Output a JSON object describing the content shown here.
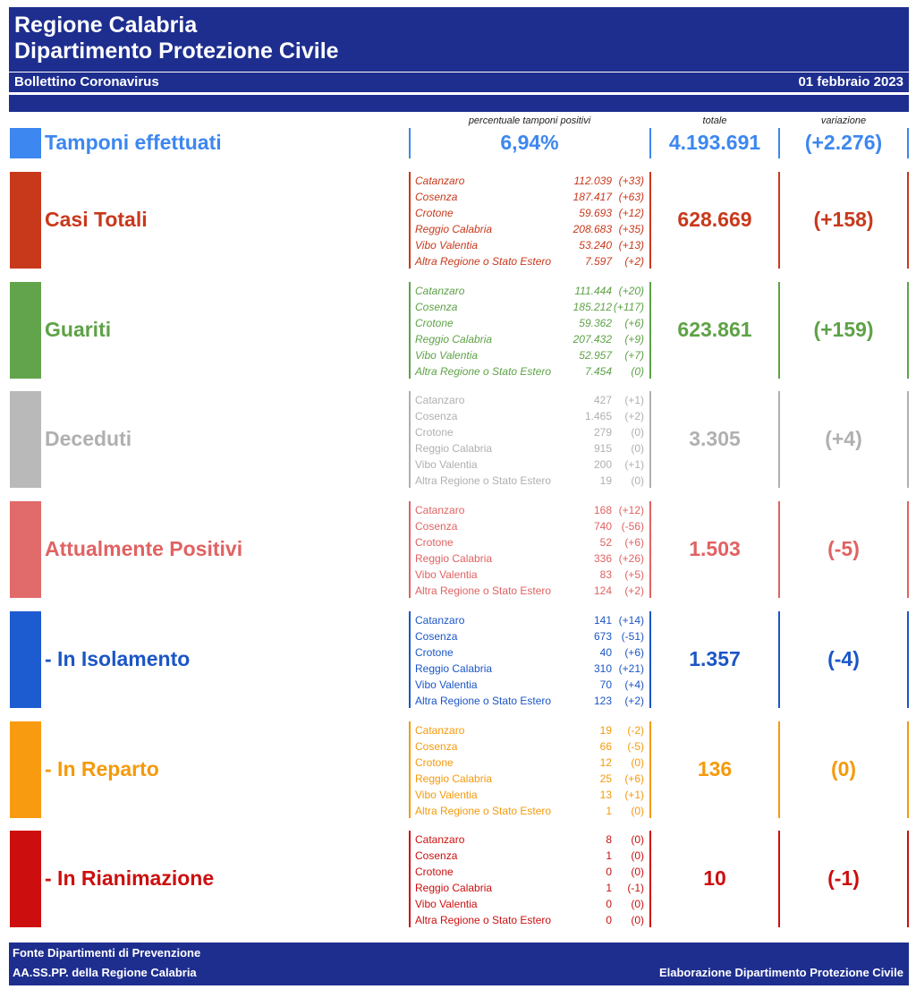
{
  "header": {
    "region": "Regione Calabria",
    "department": "Dipartimento Protezione Civile",
    "bulletin": "Bollettino Coronavirus",
    "date": "01 febbraio 2023"
  },
  "columns": {
    "percent": "percentuale tamponi positivi",
    "total": "totale",
    "change": "variazione"
  },
  "tamponi": {
    "label": "Tamponi effettuati",
    "percent": "6,94%",
    "total": "4.193.691",
    "change": "(+2.276)",
    "color": "#3c87f0"
  },
  "sections": [
    {
      "key": "casi-totali",
      "label": "Casi Totali",
      "color": "#c8391c",
      "swatch": "#c8391c",
      "italic": true,
      "total": "628.669",
      "change": "(+158)",
      "rows": [
        {
          "name": "Catanzaro",
          "value": "112.039",
          "delta": "(+33)"
        },
        {
          "name": "Cosenza",
          "value": "187.417",
          "delta": "(+63)"
        },
        {
          "name": "Crotone",
          "value": "59.693",
          "delta": "(+12)"
        },
        {
          "name": "Reggio Calabria",
          "value": "208.683",
          "delta": "(+35)"
        },
        {
          "name": "Vibo Valentia",
          "value": "53.240",
          "delta": "(+13)"
        },
        {
          "name": "Altra Regione o Stato Estero",
          "value": "7.597",
          "delta": "(+2)"
        }
      ]
    },
    {
      "key": "guariti",
      "label": "Guariti",
      "color": "#5ea247",
      "swatch": "#62a44b",
      "italic": true,
      "total": "623.861",
      "change": "(+159)",
      "rows": [
        {
          "name": "Catanzaro",
          "value": "111.444",
          "delta": "(+20)"
        },
        {
          "name": "Cosenza",
          "value": "185.212",
          "delta": "(+117)"
        },
        {
          "name": "Crotone",
          "value": "59.362",
          "delta": "(+6)"
        },
        {
          "name": "Reggio Calabria",
          "value": "207.432",
          "delta": "(+9)"
        },
        {
          "name": "Vibo Valentia",
          "value": "52.957",
          "delta": "(+7)"
        },
        {
          "name": "Altra Regione o Stato Estero",
          "value": "7.454",
          "delta": "(0)"
        }
      ]
    },
    {
      "key": "deceduti",
      "label": "Deceduti",
      "color": "#b0b0b0",
      "swatch": "#b9b9b9",
      "italic": false,
      "total": "3.305",
      "change": "(+4)",
      "rows": [
        {
          "name": "Catanzaro",
          "value": "427",
          "delta": "(+1)"
        },
        {
          "name": "Cosenza",
          "value": "1.465",
          "delta": "(+2)"
        },
        {
          "name": "Crotone",
          "value": "279",
          "delta": "(0)"
        },
        {
          "name": "Reggio Calabria",
          "value": "915",
          "delta": "(0)"
        },
        {
          "name": "Vibo Valentia",
          "value": "200",
          "delta": "(+1)"
        },
        {
          "name": "Altra Regione o Stato Estero",
          "value": "19",
          "delta": "(0)"
        }
      ]
    },
    {
      "key": "attualmente-positivi",
      "label": "Attualmente Positivi",
      "color": "#e06262",
      "swatch": "#e16a6a",
      "italic": false,
      "total": "1.503",
      "change": "(-5)",
      "rows": [
        {
          "name": "Catanzaro",
          "value": "168",
          "delta": "(+12)"
        },
        {
          "name": "Cosenza",
          "value": "740",
          "delta": "(-56)"
        },
        {
          "name": "Crotone",
          "value": "52",
          "delta": "(+6)"
        },
        {
          "name": "Reggio Calabria",
          "value": "336",
          "delta": "(+26)"
        },
        {
          "name": "Vibo Valentia",
          "value": "83",
          "delta": "(+5)"
        },
        {
          "name": "Altra Regione o Stato Estero",
          "value": "124",
          "delta": "(+2)"
        }
      ]
    },
    {
      "key": "in-isolamento",
      "label": "- In Isolamento",
      "color": "#1b56c6",
      "swatch": "#1d5bd0",
      "italic": false,
      "total": "1.357",
      "change": "(-4)",
      "rows": [
        {
          "name": "Catanzaro",
          "value": "141",
          "delta": "(+14)"
        },
        {
          "name": "Cosenza",
          "value": "673",
          "delta": "(-51)"
        },
        {
          "name": "Crotone",
          "value": "40",
          "delta": "(+6)"
        },
        {
          "name": "Reggio Calabria",
          "value": "310",
          "delta": "(+21)"
        },
        {
          "name": "Vibo Valentia",
          "value": "70",
          "delta": "(+4)"
        },
        {
          "name": "Altra Regione o Stato Estero",
          "value": "123",
          "delta": "(+2)"
        }
      ]
    },
    {
      "key": "in-reparto",
      "label": "- In Reparto",
      "color": "#f59a0c",
      "swatch": "#f99b10",
      "italic": false,
      "total": "136",
      "change": "(0)",
      "rows": [
        {
          "name": "Catanzaro",
          "value": "19",
          "delta": "(-2)"
        },
        {
          "name": "Cosenza",
          "value": "66",
          "delta": "(-5)"
        },
        {
          "name": "Crotone",
          "value": "12",
          "delta": "(0)"
        },
        {
          "name": "Reggio Calabria",
          "value": "25",
          "delta": "(+6)"
        },
        {
          "name": "Vibo Valentia",
          "value": "13",
          "delta": "(+1)"
        },
        {
          "name": "Altra Regione o Stato Estero",
          "value": "1",
          "delta": "(0)"
        }
      ]
    },
    {
      "key": "in-rianimazione",
      "label": "- In Rianimazione",
      "color": "#cc0f0f",
      "swatch": "#cd0e0e",
      "italic": false,
      "total": "10",
      "change": "(-1)",
      "rows": [
        {
          "name": "Catanzaro",
          "value": "8",
          "delta": "(0)"
        },
        {
          "name": "Cosenza",
          "value": "1",
          "delta": "(0)"
        },
        {
          "name": "Crotone",
          "value": "0",
          "delta": "(0)"
        },
        {
          "name": "Reggio Calabria",
          "value": "1",
          "delta": "(-1)"
        },
        {
          "name": "Vibo Valentia",
          "value": "0",
          "delta": "(0)"
        },
        {
          "name": "Altra Regione o Stato Estero",
          "value": "0",
          "delta": "(0)"
        }
      ]
    }
  ],
  "footer": {
    "source1": "Fonte Dipartimenti di Prevenzione",
    "source2": "AA.SS.PP.  della Regione Calabria",
    "credit": "Elaborazione Dipartimento Protezione Civile"
  }
}
